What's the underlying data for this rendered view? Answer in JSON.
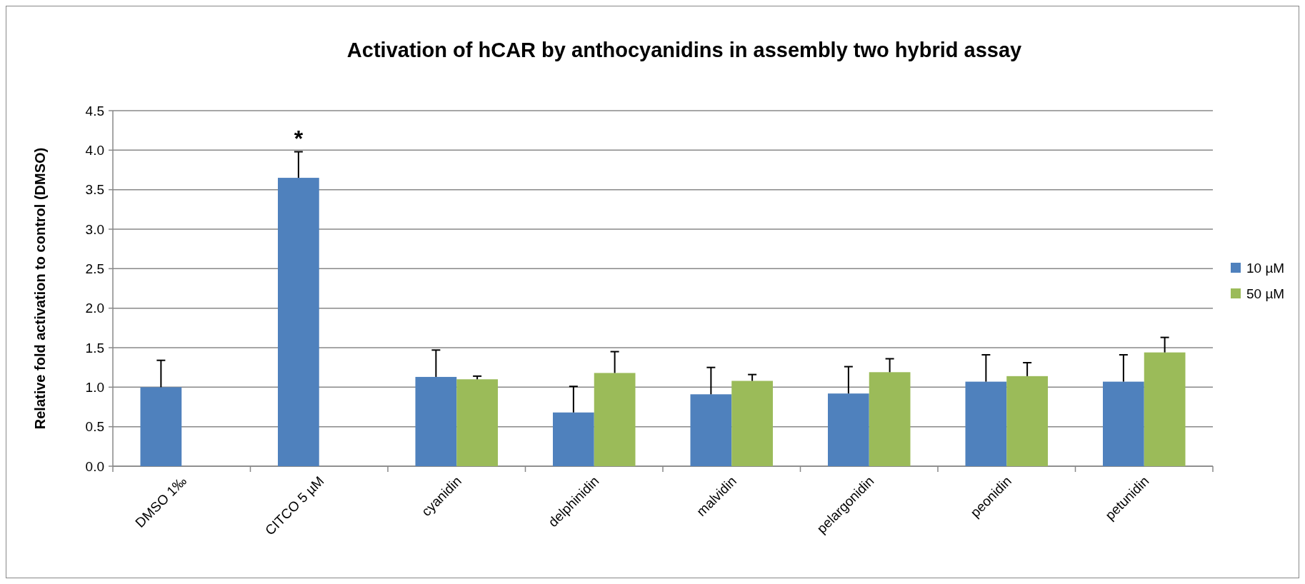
{
  "chart_data": {
    "type": "bar",
    "title": "Activation of hCAR by anthocyanidins in assembly two hybrid assay",
    "ylabel": "Relative fold activation to control (DMSO)",
    "categories": [
      "DMSO 1‰",
      "CITCO 5 µM",
      "cyanidin",
      "delphinidin",
      "malvidin",
      "pelargonidin",
      "peonidin",
      "petunidin"
    ],
    "series": [
      {
        "name": "10 µM",
        "color": "#4f81bd",
        "values": [
          1.0,
          3.65,
          1.13,
          0.68,
          0.91,
          0.92,
          1.07,
          1.07
        ],
        "errors": [
          [
            1.0,
            1.34
          ],
          [
            3.65,
            3.98
          ],
          [
            1.13,
            1.47
          ],
          [
            0.68,
            1.01
          ],
          [
            0.91,
            1.25
          ],
          [
            0.92,
            1.26
          ],
          [
            1.07,
            1.41
          ],
          [
            1.07,
            1.41
          ]
        ]
      },
      {
        "name": "50 µM",
        "color": "#9bbb59",
        "values": [
          null,
          null,
          1.1,
          1.18,
          1.08,
          1.19,
          1.14,
          1.44
        ],
        "errors": [
          null,
          null,
          [
            1.1,
            1.14
          ],
          [
            1.18,
            1.45
          ],
          [
            1.08,
            1.16
          ],
          [
            1.19,
            1.36
          ],
          [
            1.14,
            1.31
          ],
          [
            1.44,
            1.63
          ]
        ]
      }
    ],
    "ylim": [
      0,
      4.5
    ],
    "yticks": [
      {
        "value": 0,
        "label": "0.0"
      },
      {
        "value": 0.5,
        "label": "0.5"
      },
      {
        "value": 1,
        "label": "1.0"
      },
      {
        "value": 1.5,
        "label": "1.5"
      },
      {
        "value": 2,
        "label": "2.0"
      },
      {
        "value": 2.5,
        "label": "2.5"
      },
      {
        "value": 3,
        "label": "3.0"
      },
      {
        "value": 3.5,
        "label": "3.5"
      },
      {
        "value": 4,
        "label": "4.0"
      },
      {
        "value": 4.5,
        "label": "4.5"
      }
    ],
    "grid": "y",
    "legend": "right",
    "annotations": [
      {
        "text": "*",
        "x": "CITCO 5 µM",
        "y": 3.98
      }
    ]
  }
}
